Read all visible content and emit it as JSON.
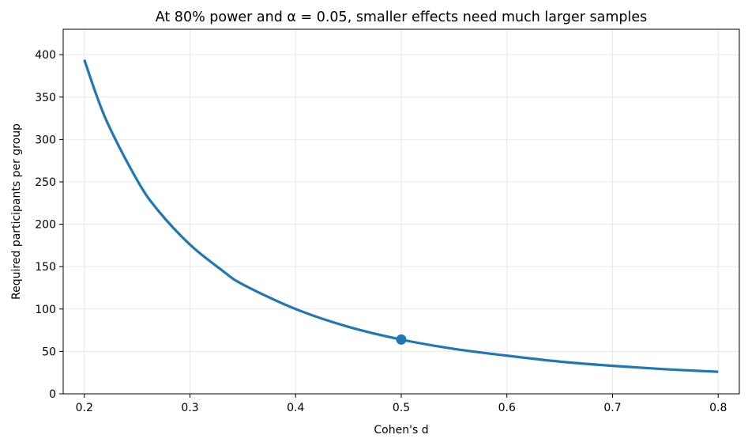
{
  "chart_data": {
    "type": "line",
    "title": "At 80% power and α = 0.05, smaller effects need much larger samples",
    "xlabel": "Cohen's d",
    "ylabel": "Required participants per group",
    "xlim": [
      0.18,
      0.82
    ],
    "ylim": [
      0,
      430
    ],
    "xticks": [
      "0.2",
      "0.3",
      "0.4",
      "0.5",
      "0.6",
      "0.7",
      "0.8"
    ],
    "yticks": [
      "0",
      "50",
      "100",
      "150",
      "200",
      "250",
      "300",
      "350",
      "400"
    ],
    "grid": true,
    "series": [
      {
        "color": "#1f77b4",
        "x": [
          0.2,
          0.22,
          0.25,
          0.27,
          0.3,
          0.33,
          0.35,
          0.4,
          0.45,
          0.5,
          0.55,
          0.6,
          0.65,
          0.7,
          0.75,
          0.8
        ],
        "values": [
          394,
          325,
          252,
          216,
          176,
          146,
          129,
          100,
          79,
          64,
          53,
          45,
          38,
          33,
          29,
          26
        ]
      }
    ],
    "highlight_point": {
      "x": 0.5,
      "y": 64,
      "color": "#1f77b4"
    }
  }
}
